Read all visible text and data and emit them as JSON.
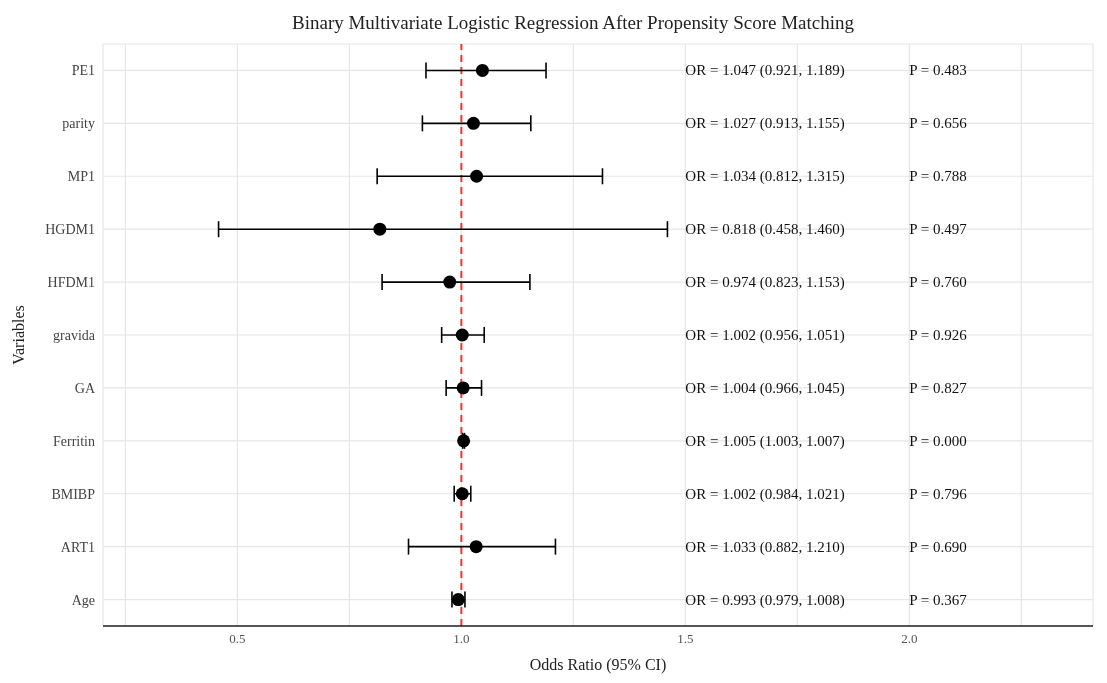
{
  "chart_data": {
    "type": "scatter",
    "orientation": "horizontal",
    "title": "Binary Multivariate Logistic Regression After Propensity Score Matching",
    "xlabel": "Odds Ratio (95% CI)",
    "ylabel": "Variables",
    "categories": [
      "PE1",
      "parity",
      "MP1",
      "HGDM1",
      "HFDM1",
      "gravida",
      "GA",
      "Ferritin",
      "BMIBP",
      "ART1",
      "Age"
    ],
    "values": [
      1.047,
      1.027,
      1.034,
      0.818,
      0.974,
      1.002,
      1.004,
      1.005,
      1.002,
      1.033,
      0.993
    ],
    "errors": [
      [
        0.921,
        1.189
      ],
      [
        0.913,
        1.155
      ],
      [
        0.812,
        1.315
      ],
      [
        0.458,
        1.46
      ],
      [
        0.823,
        1.153
      ],
      [
        0.956,
        1.051
      ],
      [
        0.966,
        1.045
      ],
      [
        1.003,
        1.007
      ],
      [
        0.984,
        1.021
      ],
      [
        0.882,
        1.21
      ],
      [
        0.979,
        1.008
      ]
    ],
    "color": "#000000",
    "marker": "circle",
    "grid": true,
    "xlim": [
      0.2,
      2.41
    ],
    "xticks": [
      {
        "value": 0.25,
        "label": null
      },
      0.5,
      {
        "value": 0.75,
        "label": null
      },
      {
        "value": 1,
        "label": "1.0"
      },
      {
        "value": 1.25,
        "label": null
      },
      1.5,
      {
        "value": 1.75,
        "label": null
      },
      {
        "value": 2,
        "label": "2.0"
      },
      {
        "value": 2.25,
        "label": null
      }
    ],
    "ref_lines": [
      {
        "axis": "x",
        "value": 1,
        "color": "#e8392f",
        "line_style": "dashed"
      }
    ],
    "annotations": [
      "OR = 1.047 (0.921, 1.189)",
      "OR = 1.027 (0.913, 1.155)",
      "OR = 1.034 (0.812, 1.315)",
      "OR = 0.818 (0.458, 1.460)",
      "OR = 0.974 (0.823, 1.153)",
      "OR = 1.002 (0.956, 1.051)",
      "OR = 1.004 (0.966, 1.045)",
      "OR = 1.005 (1.003, 1.007)",
      "OR = 1.002 (0.984, 1.021)",
      "OR = 1.033 (0.882, 1.210)",
      "OR = 0.993 (0.979, 1.008)",
      "P = 0.483",
      "P = 0.656",
      "P = 0.788",
      "P = 0.497",
      "P = 0.760",
      "P = 0.926",
      "P = 0.827",
      "P = 0.000",
      "P = 0.796",
      "P = 0.690",
      "P = 0.367"
    ]
  }
}
